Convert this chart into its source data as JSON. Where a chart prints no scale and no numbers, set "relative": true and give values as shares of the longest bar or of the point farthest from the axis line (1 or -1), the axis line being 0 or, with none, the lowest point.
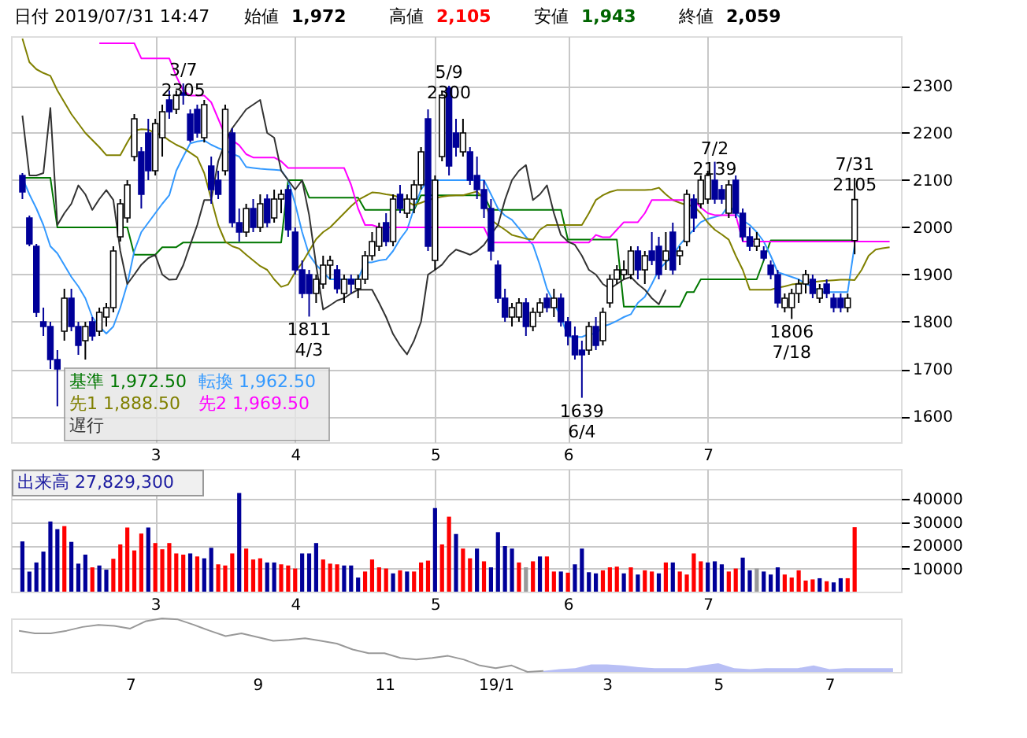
{
  "chart_data": [
    {
      "type": "candlestick",
      "title": "日付 2019/07/31 14:47",
      "annotations": [
        "始値 1,972",
        "高値 2,105",
        "安値 1,943",
        "終値 2,059",
        {
          "text": "3/7\n2305",
          "y": 2305
        },
        {
          "text": "1811\n4/3",
          "y": 1811
        },
        {
          "text": "5/9\n2300",
          "y": 2300
        },
        {
          "text": "1639\n6/4",
          "y": 1639
        },
        {
          "text": "7/2\n2139",
          "y": 2139
        },
        {
          "text": "1806\n7/18",
          "y": 1806
        },
        {
          "text": "7/31\n2105",
          "y": 2105
        }
      ],
      "categories": [
        null,
        null,
        null,
        null,
        null,
        null,
        null,
        null,
        null,
        null,
        null,
        null,
        null,
        null,
        null,
        null,
        null,
        null,
        null,
        "3",
        null,
        null,
        null,
        null,
        null,
        null,
        null,
        null,
        null,
        null,
        null,
        null,
        null,
        null,
        null,
        null,
        null,
        null,
        null,
        "4",
        null,
        null,
        null,
        null,
        null,
        null,
        null,
        null,
        null,
        null,
        null,
        null,
        null,
        null,
        null,
        null,
        null,
        null,
        null,
        "5",
        null,
        null,
        null,
        null,
        null,
        null,
        null,
        null,
        null,
        null,
        null,
        null,
        null,
        null,
        null,
        null,
        null,
        null,
        "6",
        null,
        null,
        null,
        null,
        null,
        null,
        null,
        null,
        null,
        null,
        null,
        null,
        null,
        null,
        null,
        null,
        null,
        null,
        null,
        "7",
        null,
        null,
        null,
        null,
        null,
        null,
        null,
        null,
        null,
        null,
        null,
        null,
        null,
        null,
        null,
        null,
        null,
        null,
        null,
        null,
        null,
        null,
        null,
        null,
        null,
        null
      ],
      "ohlc": [
        [
          2110,
          2115,
          2060,
          2075
        ],
        [
          2020,
          2025,
          1960,
          1965
        ],
        [
          1960,
          1965,
          1810,
          1820
        ],
        [
          1800,
          1830,
          1770,
          1790
        ],
        [
          1790,
          1800,
          1700,
          1720
        ],
        [
          1720,
          1740,
          1621,
          1700
        ],
        [
          1780,
          1870,
          1760,
          1850
        ],
        [
          1850,
          1870,
          1780,
          1790
        ],
        [
          1790,
          1800,
          1730,
          1750
        ],
        [
          1760,
          1800,
          1720,
          1790
        ],
        [
          1800,
          1810,
          1760,
          1770
        ],
        [
          1780,
          1830,
          1770,
          1820
        ],
        [
          1810,
          1840,
          1790,
          1830
        ],
        [
          1830,
          1960,
          1820,
          1950
        ],
        [
          1980,
          2060,
          1970,
          2050
        ],
        [
          2020,
          2100,
          2010,
          2090
        ],
        [
          2150,
          2240,
          2140,
          2230
        ],
        [
          2160,
          2170,
          2040,
          2070
        ],
        [
          2200,
          2230,
          2100,
          2120
        ],
        [
          2120,
          2230,
          2110,
          2220
        ],
        [
          2190,
          2260,
          2150,
          2245
        ],
        [
          2270,
          2290,
          2230,
          2245
        ],
        [
          2250,
          2290,
          2240,
          2280
        ],
        [
          2285,
          2305,
          2260,
          2280
        ],
        [
          2240,
          2250,
          2180,
          2185
        ],
        [
          2250,
          2260,
          2190,
          2200
        ],
        [
          2190,
          2270,
          2180,
          2260
        ],
        [
          2130,
          2150,
          2050,
          2080
        ],
        [
          2100,
          2120,
          2060,
          2070
        ],
        [
          2120,
          2260,
          2110,
          2250
        ],
        [
          2200,
          2210,
          2000,
          2010
        ],
        [
          2010,
          2040,
          1970,
          1990
        ],
        [
          1990,
          2050,
          1980,
          2040
        ],
        [
          2040,
          2060,
          1990,
          2000
        ],
        [
          2000,
          2070,
          1990,
          2050
        ],
        [
          2060,
          2070,
          2000,
          2010
        ],
        [
          2020,
          2080,
          2010,
          2060
        ],
        [
          2060,
          2080,
          2030,
          2070
        ],
        [
          2080,
          2090,
          1980,
          1995
        ],
        [
          1990,
          2000,
          1900,
          1910
        ],
        [
          1910,
          1930,
          1850,
          1860
        ],
        [
          1900,
          1910,
          1811,
          1860
        ],
        [
          1860,
          1900,
          1840,
          1890
        ],
        [
          1880,
          1940,
          1870,
          1920
        ],
        [
          1920,
          1940,
          1890,
          1930
        ],
        [
          1910,
          1920,
          1860,
          1870
        ],
        [
          1860,
          1900,
          1840,
          1890
        ],
        [
          1890,
          1900,
          1860,
          1880
        ],
        [
          1870,
          1900,
          1850,
          1890
        ],
        [
          1890,
          1950,
          1880,
          1940
        ],
        [
          1940,
          1990,
          1930,
          1970
        ],
        [
          1960,
          2010,
          1950,
          2000
        ],
        [
          2010,
          2030,
          1960,
          1970
        ],
        [
          1970,
          2070,
          1960,
          2060
        ],
        [
          2070,
          2090,
          2030,
          2040
        ],
        [
          2030,
          2070,
          2020,
          2060
        ],
        [
          2060,
          2100,
          2030,
          2090
        ],
        [
          2090,
          2170,
          2080,
          2160
        ],
        [
          2230,
          2250,
          1950,
          1960
        ],
        [
          1930,
          2110,
          1910,
          2100
        ],
        [
          2150,
          2290,
          2140,
          2280
        ],
        [
          2295,
          2300,
          2110,
          2130
        ],
        [
          2200,
          2230,
          2150,
          2170
        ],
        [
          2160,
          2230,
          2150,
          2200
        ],
        [
          2160,
          2170,
          2090,
          2100
        ],
        [
          2110,
          2150,
          2060,
          2080
        ],
        [
          2080,
          2100,
          2020,
          2040
        ],
        [
          2040,
          2060,
          1930,
          1950
        ],
        [
          1920,
          1930,
          1840,
          1850
        ],
        [
          1850,
          1870,
          1800,
          1810
        ],
        [
          1810,
          1840,
          1790,
          1830
        ],
        [
          1810,
          1850,
          1800,
          1840
        ],
        [
          1840,
          1850,
          1770,
          1790
        ],
        [
          1790,
          1830,
          1780,
          1820
        ],
        [
          1820,
          1850,
          1810,
          1840
        ],
        [
          1850,
          1860,
          1820,
          1830
        ],
        [
          1830,
          1870,
          1810,
          1850
        ],
        [
          1850,
          1860,
          1790,
          1800
        ],
        [
          1800,
          1810,
          1750,
          1770
        ],
        [
          1770,
          1790,
          1720,
          1730
        ],
        [
          1740,
          1760,
          1639,
          1730
        ],
        [
          1740,
          1800,
          1730,
          1790
        ],
        [
          1790,
          1810,
          1740,
          1750
        ],
        [
          1760,
          1830,
          1750,
          1820
        ],
        [
          1840,
          1900,
          1830,
          1890
        ],
        [
          1890,
          1920,
          1880,
          1910
        ],
        [
          1900,
          1930,
          1890,
          1910
        ],
        [
          1900,
          1960,
          1890,
          1950
        ],
        [
          1950,
          1960,
          1890,
          1910
        ],
        [
          1910,
          1950,
          1880,
          1940
        ],
        [
          1950,
          1990,
          1920,
          1930
        ],
        [
          1960,
          1980,
          1890,
          1900
        ],
        [
          1930,
          1990,
          1910,
          1950
        ],
        [
          1990,
          2010,
          1900,
          1910
        ],
        [
          1940,
          1960,
          1920,
          1950
        ],
        [
          1970,
          2080,
          1960,
          2070
        ],
        [
          2060,
          2070,
          1990,
          2020
        ],
        [
          2050,
          2110,
          2040,
          2100
        ],
        [
          2060,
          2120,
          2050,
          2110
        ],
        [
          2100,
          2139,
          2050,
          2060
        ],
        [
          2080,
          2090,
          2050,
          2060
        ],
        [
          2030,
          2100,
          2020,
          2090
        ],
        [
          2100,
          2110,
          2020,
          2030
        ],
        [
          2030,
          2040,
          1970,
          1980
        ],
        [
          1980,
          2000,
          1950,
          1960
        ],
        [
          1960,
          1990,
          1950,
          1975
        ],
        [
          1950,
          1960,
          1930,
          1935
        ],
        [
          1920,
          1930,
          1890,
          1900
        ],
        [
          1900,
          1910,
          1830,
          1840
        ],
        [
          1830,
          1860,
          1820,
          1850
        ],
        [
          1830,
          1870,
          1806,
          1860
        ],
        [
          1860,
          1890,
          1840,
          1880
        ],
        [
          1880,
          1910,
          1860,
          1900
        ],
        [
          1890,
          1900,
          1850,
          1860
        ],
        [
          1850,
          1880,
          1840,
          1870
        ],
        [
          1880,
          1890,
          1850,
          1860
        ],
        [
          1850,
          1860,
          1820,
          1830
        ],
        [
          1850,
          1860,
          1820,
          1830
        ],
        [
          1830,
          1860,
          1820,
          1850
        ],
        [
          1972,
          2105,
          1943,
          2059
        ],
        null,
        null,
        null,
        null,
        null
      ],
      "colors": [
        "#000099",
        "#000099",
        "#000099",
        "#000099",
        "#000099",
        "#000099",
        "#ffffff",
        "#000099",
        "#000099",
        "#ffffff",
        "#000099",
        "#ffffff",
        "#ffffff",
        "#ffffff",
        "#ffffff",
        "#ffffff",
        "#ffffff",
        "#000099",
        "#000099",
        "#ffffff",
        "#ffffff",
        "#000099",
        "#ffffff",
        "#000099",
        "#000099",
        "#000099",
        "#ffffff",
        "#000099",
        "#000099",
        "#ffffff",
        "#000099",
        "#000099",
        "#ffffff",
        "#000099",
        "#ffffff",
        "#000099",
        "#ffffff",
        "#ffffff",
        "#000099",
        "#000099",
        "#000099",
        "#000099",
        "#ffffff",
        "#ffffff",
        "#ffffff",
        "#000099",
        "#ffffff",
        "#000099",
        "#ffffff",
        "#ffffff",
        "#ffffff",
        "#ffffff",
        "#000099",
        "#ffffff",
        "#000099",
        "#ffffff",
        "#ffffff",
        "#ffffff",
        "#000099",
        "#ffffff",
        "#ffffff",
        "#000099",
        "#000099",
        "#ffffff",
        "#000099",
        "#000099",
        "#000099",
        "#000099",
        "#000099",
        "#000099",
        "#ffffff",
        "#ffffff",
        "#000099",
        "#ffffff",
        "#ffffff",
        "#000099",
        "#ffffff",
        "#000099",
        "#000099",
        "#000099",
        "#000099",
        "#ffffff",
        "#000099",
        "#ffffff",
        "#ffffff",
        "#ffffff",
        "#ffffff",
        "#ffffff",
        "#000099",
        "#ffffff",
        "#000099",
        "#000099",
        "#ffffff",
        "#000099",
        "#ffffff",
        "#ffffff",
        "#000099",
        "#ffffff",
        "#ffffff",
        "#000099",
        "#000099",
        "#ffffff",
        "#000099",
        "#000099",
        "#000099",
        "#ffffff",
        "#000099",
        "#000099",
        "#000099",
        "#ffffff",
        "#ffffff",
        "#ffffff",
        "#ffffff",
        "#000099",
        "#ffffff",
        "#000099",
        "#000099",
        "#000099",
        "#ffffff",
        "#ffffff",
        null,
        null,
        null,
        null,
        null
      ],
      "series": [
        {
          "name": "基準 1,972.50",
          "color": "#007700",
          "type": "line",
          "values": [
            2105,
            2105,
            2105,
            2105,
            2105,
            2000,
            2000,
            2000,
            2000,
            2000,
            2000,
            2000,
            2000,
            2000,
            2000,
            2000,
            1942,
            1942,
            1942,
            1942,
            1958,
            1958,
            1958,
            1968,
            1968,
            1968,
            1968,
            1968,
            1968,
            1968,
            1968,
            1968,
            1968,
            1968,
            1968,
            1968,
            1968,
            1968,
            2100,
            2100,
            2100,
            2063,
            2063,
            2063,
            2063,
            2063,
            2063,
            2063,
            2063,
            2037,
            2037,
            2037,
            2037,
            2037,
            2037,
            2037,
            2037,
            2068,
            2068,
            2068,
            2068,
            2068,
            2068,
            2068,
            2068,
            2068,
            2068,
            2037,
            2037,
            2037,
            2037,
            2037,
            2037,
            2037,
            2037,
            2037,
            2037,
            2037,
            1974,
            1974,
            1974,
            1974,
            1974,
            1974,
            1974,
            1974,
            1832,
            1832,
            1832,
            1832,
            1832,
            1832,
            1832,
            1832,
            1832,
            1863,
            1863,
            1890,
            1890,
            1890,
            1890,
            1890,
            1890,
            1890,
            1890,
            1890,
            1930,
            1972.5,
            1972.5,
            1972.5,
            1972.5,
            1972.5,
            1972.5,
            1972.5,
            1972.5,
            1972.5,
            1972.5,
            1972.5,
            1972.5,
            1972.5,
            null,
            null,
            null,
            null,
            null
          ]
        },
        {
          "name": "転換 1,962.50",
          "color": "#3399ff",
          "type": "line",
          "values": [
            2105,
            2070,
            2040,
            2005,
            1960,
            1945,
            1920,
            1895,
            1875,
            1850,
            1810,
            1790,
            1775,
            1790,
            1830,
            1880,
            1950,
            1990,
            2010,
            2030,
            2050,
            2068,
            2120,
            2150,
            2178,
            2182,
            2184,
            2175,
            2168,
            2163,
            2156,
            2150,
            2128,
            2126,
            2124,
            2123,
            2122,
            2121,
            2100,
            2050,
            1990,
            1942,
            1921,
            1905,
            1890,
            1890,
            1890,
            1890,
            1890,
            1926,
            1926,
            1930,
            1932,
            1950,
            1975,
            1995,
            2040,
            2080,
            2100,
            2100,
            2100,
            2100,
            2100,
            2100,
            2100,
            2100,
            2100,
            2070,
            2040,
            2025,
            2016,
            1998,
            1980,
            1963,
            1920,
            1870,
            1840,
            1810,
            1768,
            1768,
            1768,
            1774,
            1774,
            1790,
            1795,
            1802,
            1810,
            1816,
            1840,
            1853,
            1880,
            1910,
            1926,
            1940,
            1963,
            1980,
            1995,
            2011,
            2018,
            2022,
            2026,
            2047,
            2030,
            2015,
            2005,
            1990,
            1970,
            1940,
            1905,
            1900,
            1895,
            1890,
            1880,
            1875,
            1863,
            1863,
            1863,
            1863,
            1863,
            1962.5,
            null,
            null,
            null,
            null,
            null
          ]
        },
        {
          "name": "先1 1,888.50",
          "color": "#808000",
          "type": "line",
          "values": [
            2400,
            2350,
            2335,
            2327,
            2321,
            2290,
            2265,
            2240,
            2220,
            2200,
            2185,
            2170,
            2153,
            2153,
            2153,
            2180,
            2205,
            2208,
            2207,
            2200,
            2195,
            2184,
            2175,
            2168,
            2158,
            2148,
            2115,
            2060,
            2005,
            1970,
            1960,
            1955,
            1942,
            1930,
            1918,
            1910,
            1890,
            1874,
            1879,
            1905,
            1925,
            1950,
            1975,
            1990,
            2000,
            2015,
            2030,
            2045,
            2058,
            2066,
            2074,
            2073,
            2070,
            2068,
            2063,
            2055,
            2047,
            2052,
            2058,
            2062,
            2065,
            2067,
            2068,
            2068,
            2072,
            2076,
            2060,
            2016,
            2005,
            1995,
            1984,
            1980,
            1976,
            1974,
            1995,
            2005,
            2005,
            2005,
            2005,
            2005,
            2005,
            2030,
            2058,
            2068,
            2075,
            2079,
            2079,
            2079,
            2079,
            2079,
            2080,
            2084,
            2070,
            2058,
            2052,
            2047,
            2045,
            2030,
            2010,
            1995,
            1985,
            1974,
            1940,
            1910,
            1868,
            1868,
            1868,
            1868,
            1872,
            1875,
            1879,
            1881,
            1883,
            1884,
            1886,
            1887,
            1888,
            1889,
            1889,
            1888.5,
            1910,
            1940,
            1953,
            1956,
            1958
          ]
        },
        {
          "name": "先2 1,969.50",
          "color": "#ff00ff",
          "type": "line",
          "values": [
            null,
            null,
            null,
            null,
            null,
            null,
            null,
            null,
            null,
            null,
            null,
            2390,
            2390,
            2390,
            2390,
            2390,
            2390,
            2358,
            2358,
            2358,
            2358,
            2358,
            2320,
            2290,
            2279,
            2279,
            2279,
            2265,
            2230,
            2195,
            2185,
            2174,
            2155,
            2148,
            2148,
            2148,
            2148,
            2140,
            2126,
            2126,
            2126,
            2126,
            2126,
            2126,
            2126,
            2126,
            2126,
            2090,
            2040,
            2005,
            2005,
            2000,
            2000,
            2000,
            2000,
            2000,
            2000,
            2000,
            2000,
            2000,
            2000,
            2000,
            2000,
            2000,
            2000,
            2000,
            2000,
            1968,
            1968,
            1968,
            1968,
            1968,
            1968,
            1968,
            1968,
            1968,
            1968,
            1968,
            1968,
            1968,
            1968,
            1968,
            1984,
            1979,
            1979,
            1995,
            2011,
            2011,
            2011,
            2030,
            2058,
            2058,
            2058,
            2058,
            2058,
            2058,
            2058,
            2042,
            2030,
            2026,
            2026,
            2026,
            2026,
            1970,
            1970,
            1970,
            1970,
            1970,
            1970,
            1970,
            1970,
            1970,
            1970,
            1970,
            1970,
            1970,
            1970,
            1970,
            1970,
            1970,
            1970,
            1970,
            1970,
            1970,
            1970
          ]
        },
        {
          "name": "遅行",
          "color": "#333333",
          "type": "line",
          "values": [
            2237,
            2110,
            2110,
            2115,
            2253,
            2005,
            2030,
            2050,
            2089,
            2070,
            2037,
            2060,
            2079,
            2058,
            1950,
            1880,
            1900,
            1921,
            1935,
            1942,
            1900,
            1889,
            1890,
            1920,
            1963,
            2005,
            2058,
            2058,
            2140,
            2180,
            2210,
            2230,
            2250,
            2260,
            2270,
            2200,
            2190,
            2120,
            2100,
            2080,
            2100,
            2026,
            1920,
            1826,
            1835,
            1845,
            1850,
            1860,
            1868,
            1868,
            1868,
            1840,
            1810,
            1774,
            1750,
            1731,
            1760,
            1800,
            1900,
            1910,
            1921,
            1940,
            1953,
            1948,
            1942,
            1950,
            1963,
            1985,
            2005,
            2058,
            2100,
            2120,
            2132,
            2058,
            2070,
            2089,
            2030,
            1984,
            1970,
            1963,
            1940,
            1910,
            1900,
            1880,
            1870,
            1880,
            1890,
            1895,
            1880,
            1868,
            1850,
            1837,
            1868,
            null,
            null,
            null,
            null,
            null,
            null,
            null,
            null,
            null,
            null,
            null,
            null,
            null,
            null,
            null,
            null,
            null,
            null,
            null,
            null,
            null,
            null,
            null,
            null,
            null,
            null,
            null,
            null,
            null,
            null,
            null,
            null
          ]
        }
      ],
      "ylim": [
        1545,
        2405
      ],
      "yticks": [
        1600,
        1700,
        1800,
        1900,
        2000,
        2100,
        2200,
        2300
      ],
      "grid": true,
      "legend": "bottom left"
    },
    {
      "type": "bar",
      "title": "出来高 27,829,300",
      "categories": [
        null,
        null,
        null,
        null,
        null,
        null,
        null,
        null,
        null,
        null,
        null,
        null,
        null,
        null,
        null,
        null,
        null,
        null,
        null,
        "3",
        null,
        null,
        null,
        null,
        null,
        null,
        null,
        null,
        null,
        null,
        null,
        null,
        null,
        null,
        null,
        null,
        null,
        null,
        null,
        "4",
        null,
        null,
        null,
        null,
        null,
        null,
        null,
        null,
        null,
        null,
        null,
        null,
        null,
        null,
        null,
        null,
        null,
        null,
        null,
        "5",
        null,
        null,
        null,
        null,
        null,
        null,
        null,
        null,
        null,
        null,
        null,
        null,
        null,
        null,
        null,
        null,
        null,
        null,
        "6",
        null,
        null,
        null,
        null,
        null,
        null,
        null,
        null,
        null,
        null,
        null,
        null,
        null,
        null,
        null,
        null,
        null,
        null,
        null,
        "7",
        null,
        null,
        null,
        null,
        null,
        null,
        null,
        null,
        null,
        null,
        null,
        null,
        null,
        null,
        null,
        null,
        null,
        null,
        null,
        null,
        null,
        null,
        null,
        null,
        null,
        null
      ],
      "values": [
        21700,
        8700,
        12600,
        17300,
        30300,
        27000,
        28300,
        21500,
        12100,
        16000,
        10500,
        11300,
        9500,
        14200,
        20400,
        27700,
        17800,
        25100,
        27700,
        21000,
        18300,
        21000,
        16500,
        16000,
        16500,
        15200,
        14400,
        18900,
        11800,
        11300,
        16500,
        42600,
        18600,
        13900,
        14400,
        12600,
        12600,
        11800,
        11300,
        10000,
        16500,
        16500,
        21000,
        13900,
        12100,
        11800,
        11300,
        11300,
        6100,
        8700,
        13900,
        10500,
        10000,
        7900,
        9200,
        8700,
        8700,
        12600,
        13400,
        36100,
        20400,
        32400,
        24900,
        18600,
        14400,
        18600,
        13100,
        10500,
        25700,
        19700,
        18600,
        12600,
        10500,
        13100,
        15200,
        15200,
        8700,
        8700,
        8200,
        11800,
        18600,
        8400,
        7900,
        9200,
        10500,
        10800,
        7900,
        10500,
        7400,
        9200,
        8700,
        7900,
        12600,
        12600,
        8700,
        7400,
        16500,
        13100,
        12600,
        13100,
        11800,
        8700,
        10000,
        14700,
        9200,
        10000,
        8700,
        7400,
        10500,
        7400,
        6100,
        9200,
        4800,
        5300,
        5800,
        4500,
        4000,
        5800,
        5800,
        27829,
        null,
        null,
        null,
        null,
        null
      ],
      "colors": [
        "#000099",
        "#000099",
        "#000099",
        "#000099",
        "#000099",
        "#000099",
        "#ff0000",
        "#000099",
        "#000099",
        "#000099",
        "#ff0000",
        "#000099",
        "#000099",
        "#ff0000",
        "#ff0000",
        "#ff0000",
        "#ff0000",
        "#ff0000",
        "#000099",
        "#ff0000",
        "#ff0000",
        "#ff0000",
        "#ff0000",
        "#ff0000",
        "#000099",
        "#ff0000",
        "#000099",
        "#000099",
        "#ff0000",
        "#ff0000",
        "#ff0000",
        "#000099",
        "#ff0000",
        "#ff0000",
        "#ff0000",
        "#000099",
        "#000099",
        "#ff0000",
        "#ff0000",
        "#ff0000",
        "#000099",
        "#000099",
        "#000099",
        "#ff0000",
        "#ff0000",
        "#ff0000",
        "#000099",
        "#000099",
        "#000099",
        "#ff0000",
        "#ff0000",
        "#ff0000",
        "#ff0000",
        "#000099",
        "#ff0000",
        "#000099",
        "#ff0000",
        "#ff0000",
        "#ff0000",
        "#000099",
        "#ff0000",
        "#ff0000",
        "#000099",
        "#ff0000",
        "#ff0000",
        "#000099",
        "#ff0000",
        "#000099",
        "#000099",
        "#000099",
        "#000099",
        "#ff0000",
        "#999999",
        "#ff0000",
        "#000099",
        "#ff0000",
        "#ff0000",
        "#000099",
        "#ff0000",
        "#000099",
        "#000099",
        "#000099",
        "#000099",
        "#ff0000",
        "#ff0000",
        "#ff0000",
        "#000099",
        "#ff0000",
        "#000099",
        "#ff0000",
        "#ff0000",
        "#000099",
        "#ff0000",
        "#000099",
        "#ff0000",
        "#ff0000",
        "#ff0000",
        "#ff0000",
        "#000099",
        "#000099",
        "#000099",
        "#ff0000",
        "#ff0000",
        "#000099",
        "#000099",
        "#999999",
        "#000099",
        "#000099",
        "#000099",
        "#ff0000",
        "#ff0000",
        "#ff0000",
        "#ff0000",
        "#ff0000",
        "#000099",
        "#ff0000",
        "#000099",
        "#000099",
        "#ff0000",
        "#ff0000",
        null,
        null,
        null,
        null,
        null
      ],
      "ylim": [
        0,
        53000
      ],
      "yticks": [
        10000,
        20000,
        30000,
        40000
      ],
      "grid": true
    },
    {
      "type": "line",
      "relative": true,
      "categories": [
        null,
        null,
        null,
        null,
        null,
        null,
        null,
        "7",
        null,
        null,
        null,
        null,
        null,
        null,
        null,
        "9",
        null,
        null,
        null,
        null,
        null,
        null,
        null,
        "11",
        null,
        null,
        null,
        null,
        null,
        null,
        "19/1",
        null,
        null,
        null,
        null,
        null,
        null,
        "3",
        null,
        null,
        null,
        null,
        null,
        null,
        "5",
        null,
        null,
        null,
        null,
        null,
        null,
        "7",
        null,
        null,
        null,
        null
      ],
      "series": [
        {
          "color": "#999999",
          "type": "line",
          "values": [
            0.77,
            0.72,
            0.72,
            0.77,
            0.84,
            0.88,
            0.86,
            0.81,
            0.95,
            1,
            0.98,
            0.88,
            0.77,
            0.67,
            0.72,
            0.65,
            0.58,
            0.6,
            0.63,
            0.58,
            0.53,
            0.42,
            0.35,
            0.35,
            0.26,
            0.23,
            0.26,
            0.3,
            0.23,
            0.12,
            0.07,
            0.12,
            0,
            0.02,
            null,
            null,
            null,
            null,
            null,
            null,
            null,
            null,
            null,
            null,
            null,
            null,
            null,
            null,
            null,
            null,
            null,
            null,
            null,
            null,
            null,
            null
          ]
        },
        {
          "color": "#b8bff5",
          "type": "area",
          "values": [
            null,
            null,
            null,
            null,
            null,
            null,
            null,
            null,
            null,
            null,
            null,
            null,
            null,
            null,
            null,
            null,
            null,
            null,
            null,
            null,
            null,
            null,
            null,
            null,
            null,
            null,
            null,
            null,
            null,
            null,
            null,
            null,
            null,
            0.02,
            0.05,
            0.07,
            0.14,
            0.14,
            0.12,
            0.09,
            0.07,
            0.07,
            0.07,
            0.12,
            0.16,
            0.07,
            0.05,
            0.07,
            0.07,
            0.07,
            0.12,
            0.05,
            0.07,
            0.07,
            0.07,
            0.07
          ]
        }
      ]
    }
  ]
}
